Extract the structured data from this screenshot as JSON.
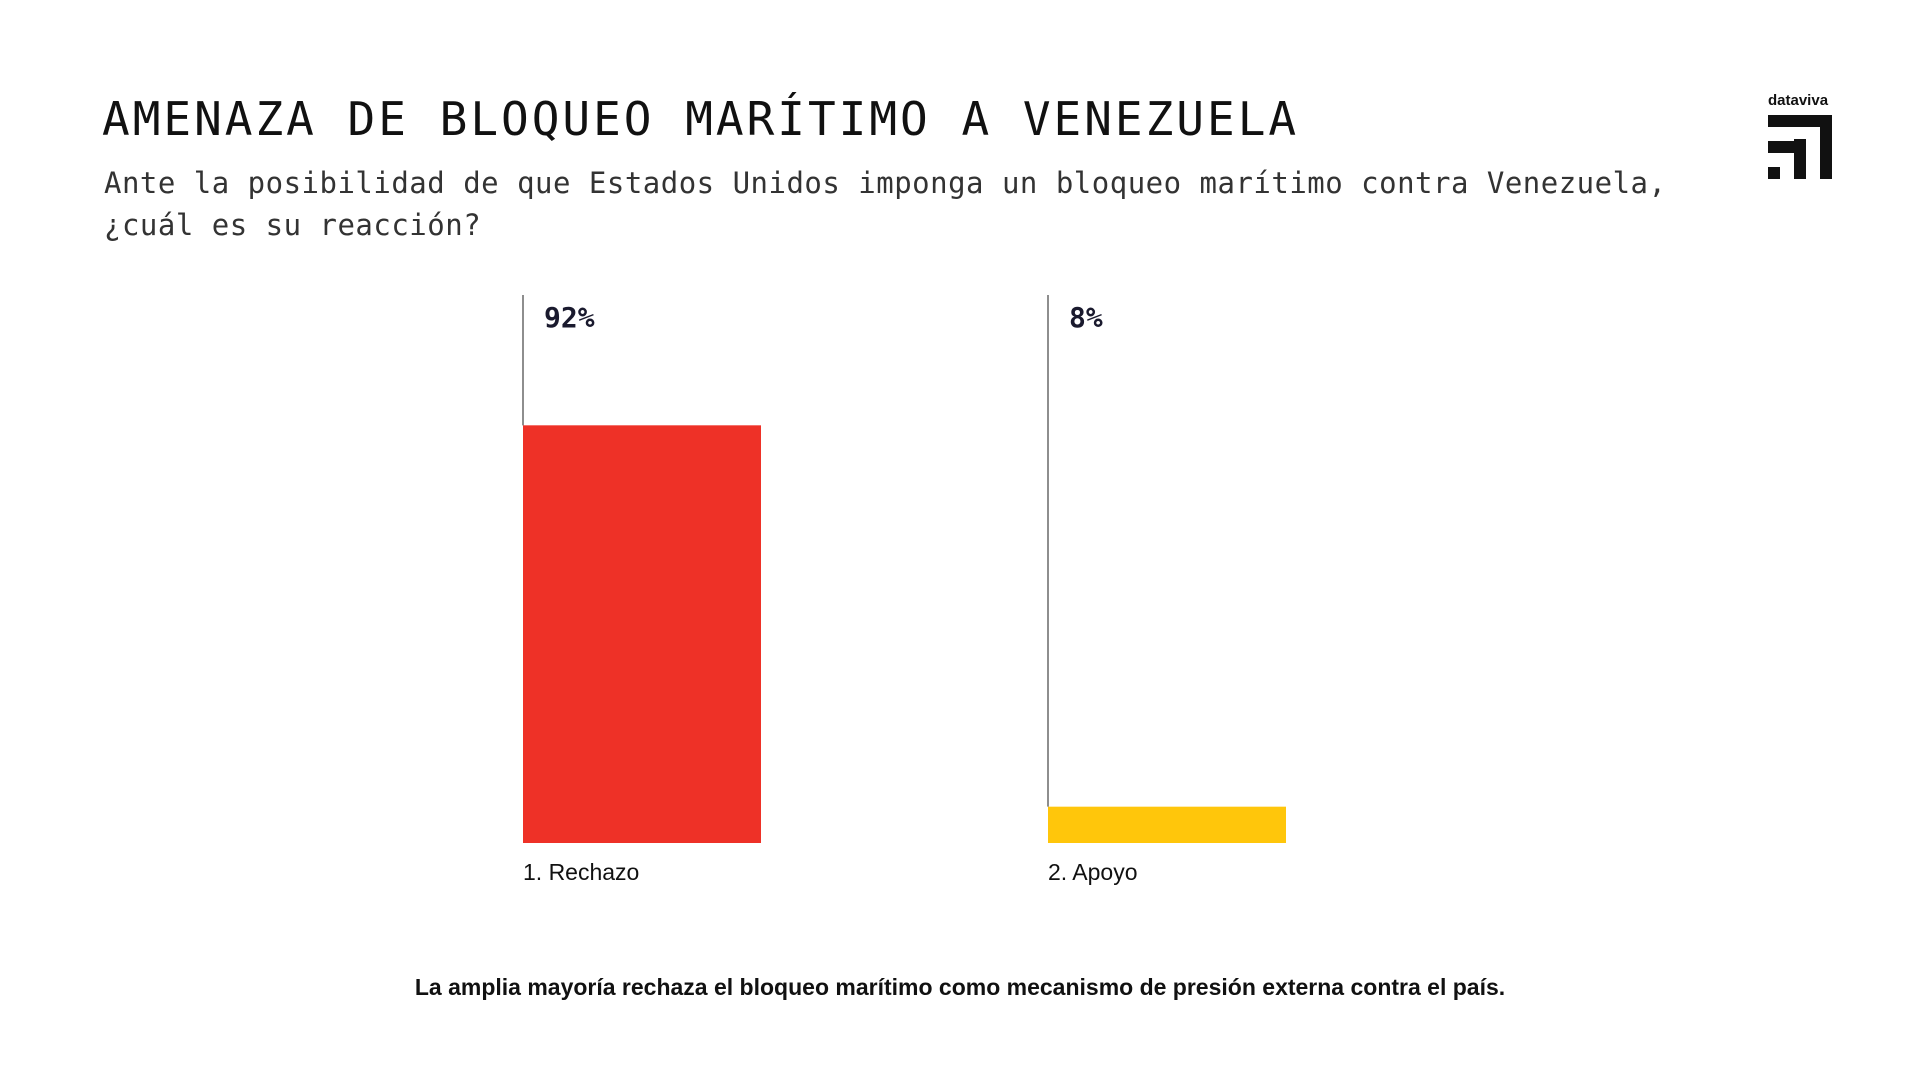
{
  "header": {
    "title": "AMENAZA DE BLOQUEO MARÍTIMO A VENEZUELA",
    "subtitle_line1": "Ante la posibilidad de que Estados Unidos imponga un bloqueo marítimo contra Venezuela,",
    "subtitle_line2": "¿cuál es su reacción?"
  },
  "logo": {
    "text": "dataviva"
  },
  "chart_data": {
    "type": "bar",
    "title": "AMENAZA DE BLOQUEO MARÍTIMO A VENEZUELA",
    "xlabel": "",
    "ylabel": "",
    "ylim": [
      0,
      100
    ],
    "grid": false,
    "categories": [
      "1. Rechazo",
      "2. Apoyo"
    ],
    "values": [
      92,
      8
    ],
    "value_labels": [
      "92%",
      "8%"
    ],
    "colors": [
      "#EE3127",
      "#FFC60B"
    ]
  },
  "footnote": "La amplia mayoría rechaza el bloqueo marítimo como mecanismo de presión externa contra el país."
}
